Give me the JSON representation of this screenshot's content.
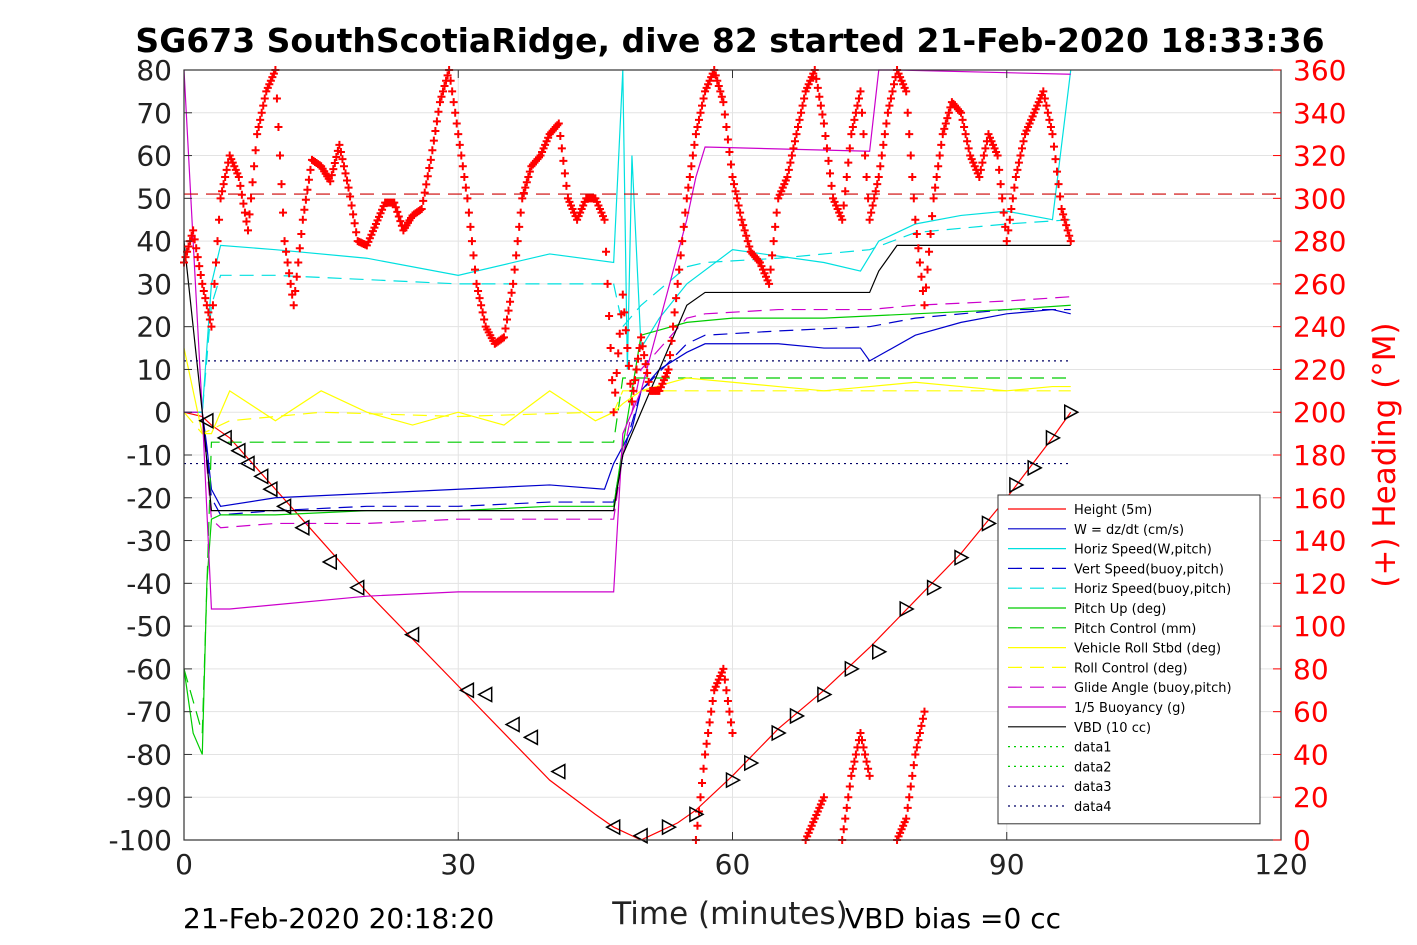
{
  "chart_data": {
    "type": "line",
    "title": "SG673 SouthScotiaRidge, dive 82 started 21-Feb-2020 18:33:36",
    "xlabel": "Time (minutes)",
    "ylabel_right": "(+) Heading (°M)",
    "xlim": [
      0,
      120
    ],
    "ylim": [
      -100,
      80
    ],
    "ylim_right": [
      0,
      360
    ],
    "x_ticks": [
      "0",
      "30",
      "60",
      "90",
      "120"
    ],
    "y_ticks": [
      "80",
      "70",
      "60",
      "50",
      "40",
      "30",
      "20",
      "10",
      "0",
      "-10",
      "-20",
      "-30",
      "-40",
      "-50",
      "-60",
      "-70",
      "-80",
      "-90",
      "-100"
    ],
    "y_ticks_right": [
      "360",
      "340",
      "320",
      "300",
      "280",
      "260",
      "240",
      "220",
      "200",
      "180",
      "160",
      "140",
      "120",
      "100",
      "80",
      "60",
      "40",
      "20",
      "0"
    ],
    "footer_left": "21-Feb-2020 20:18:20",
    "footer_right": "VBD bias =0 cc",
    "legend_position": "lower-right",
    "grid": true,
    "series": [
      {
        "name": "Height (5m)",
        "color": "#ff0000",
        "style": "solid",
        "x": [
          0,
          2,
          3,
          5,
          10,
          15,
          20,
          25,
          30,
          35,
          40,
          45,
          47,
          48,
          50,
          52,
          54,
          56,
          60,
          65,
          70,
          75,
          80,
          85,
          90,
          95,
          97
        ],
        "y": [
          0,
          -1,
          -3,
          -6,
          -18,
          -30,
          -42,
          -53,
          -64,
          -75,
          -86,
          -94,
          -97,
          -98,
          -100,
          -98,
          -96,
          -93,
          -85,
          -74,
          -65,
          -55,
          -44,
          -33,
          -20,
          -6,
          0
        ]
      },
      {
        "name": "W = dz/dt (cm/s)",
        "color": "#0000cc",
        "style": "solid",
        "x": [
          0,
          2,
          2.5,
          3,
          4,
          10,
          20,
          30,
          40,
          46,
          47,
          49,
          50,
          52,
          55,
          57,
          65,
          70,
          74,
          75,
          80,
          85,
          90,
          95,
          97
        ],
        "y": [
          0,
          0,
          -8,
          -18,
          -22,
          -20,
          -19,
          -18,
          -17,
          -18,
          -12,
          -4,
          5,
          10,
          14,
          16,
          16,
          15,
          15,
          12,
          18,
          21,
          23,
          24,
          23
        ]
      },
      {
        "name": "Horiz Speed(W,pitch)",
        "color": "#00e0e0",
        "style": "solid",
        "x": [
          0,
          2,
          3,
          4,
          10,
          20,
          30,
          40,
          47,
          48,
          48.5,
          49,
          50,
          52,
          55,
          60,
          70,
          74,
          76,
          80,
          85,
          90,
          95,
          97
        ],
        "y": [
          0,
          0,
          30,
          39,
          38,
          36,
          32,
          37,
          35,
          80,
          10,
          60,
          15,
          22,
          30,
          38,
          35,
          33,
          40,
          44,
          46,
          47,
          45,
          80
        ]
      },
      {
        "name": "Vert Speed(buoy,pitch)",
        "color": "#0000cc",
        "style": "dashed",
        "x": [
          0,
          2,
          3,
          4,
          10,
          20,
          30,
          40,
          47,
          48,
          50,
          55,
          57,
          65,
          75,
          80,
          90,
          97
        ],
        "y": [
          0,
          0,
          -20,
          -24,
          -23,
          -22,
          -22,
          -21,
          -21,
          -10,
          5,
          16,
          18,
          19,
          20,
          22,
          24,
          24
        ]
      },
      {
        "name": "Horiz Speed(buoy,pitch)",
        "color": "#00e0e0",
        "style": "dashed",
        "x": [
          0,
          2,
          3,
          4,
          10,
          20,
          30,
          40,
          47,
          48,
          50,
          55,
          57,
          65,
          75,
          80,
          90,
          97
        ],
        "y": [
          0,
          0,
          25,
          32,
          32,
          31,
          30,
          30,
          30,
          20,
          25,
          34,
          35,
          36,
          38,
          42,
          44,
          45
        ]
      },
      {
        "name": "Pitch Up (deg)",
        "color": "#00cc00",
        "style": "solid",
        "x": [
          0,
          1,
          2,
          2.5,
          3,
          4,
          10,
          20,
          30,
          40,
          47,
          48,
          49,
          50,
          55,
          60,
          70,
          80,
          90,
          97
        ],
        "y": [
          -60,
          -75,
          -80,
          -40,
          -25,
          -24,
          -24,
          -23,
          -23,
          -22,
          -22,
          -8,
          5,
          18,
          21,
          22,
          22,
          23,
          24,
          25
        ]
      },
      {
        "name": "Pitch Control (mm)",
        "color": "#00cc00",
        "style": "dashed",
        "x": [
          0,
          2,
          3,
          4,
          47,
          48,
          97
        ],
        "y": [
          -60,
          -75,
          -7,
          -7,
          -7,
          8,
          8
        ]
      },
      {
        "name": "Vehicle Roll Stbd (deg)",
        "color": "#ffff00",
        "style": "solid",
        "x": [
          0,
          2,
          3,
          5,
          10,
          15,
          20,
          25,
          30,
          35,
          40,
          45,
          47,
          48,
          50,
          55,
          60,
          65,
          70,
          75,
          80,
          85,
          90,
          95,
          97
        ],
        "y": [
          15,
          -5,
          -5,
          5,
          -2,
          5,
          0,
          -3,
          0,
          -3,
          5,
          -2,
          0,
          2,
          5,
          8,
          7,
          6,
          5,
          6,
          7,
          6,
          5,
          6,
          6
        ]
      },
      {
        "name": "Roll Control (deg)",
        "color": "#ffff00",
        "style": "dashed",
        "x": [
          0,
          2,
          5,
          15,
          30,
          45,
          47,
          48,
          55,
          65,
          75,
          85,
          97
        ],
        "y": [
          0,
          -5,
          -2,
          0,
          -1,
          0,
          0,
          5,
          5,
          5,
          5,
          5,
          5
        ]
      },
      {
        "name": "Glide Angle (buoy,pitch)",
        "color": "#cc00cc",
        "style": "dashed",
        "x": [
          0,
          2,
          3,
          4,
          10,
          20,
          30,
          40,
          47,
          48,
          50,
          55,
          57,
          65,
          75,
          80,
          90,
          97
        ],
        "y": [
          0,
          0,
          -25,
          -27,
          -26,
          -26,
          -25,
          -25,
          -25,
          -10,
          10,
          22,
          23,
          24,
          24,
          25,
          26,
          27
        ]
      },
      {
        "name": "1/5 Buoyancy (g)",
        "color": "#cc00cc",
        "style": "solid",
        "x": [
          0,
          2,
          3,
          5,
          10,
          20,
          30,
          40,
          47,
          48,
          49,
          50,
          55,
          56,
          57,
          75,
          76,
          78,
          97
        ],
        "y": [
          80,
          0,
          -46,
          -46,
          -45,
          -43,
          -42,
          -42,
          -42,
          -5,
          0,
          5,
          45,
          55,
          62,
          61,
          80,
          80,
          79
        ]
      },
      {
        "name": "VBD (10 cc)",
        "color": "#000000",
        "style": "solid",
        "x": [
          0,
          2,
          3,
          4,
          47,
          48,
          55,
          57,
          75,
          76,
          78,
          97
        ],
        "y": [
          40,
          0,
          -23,
          -23,
          -23,
          -10,
          25,
          28,
          28,
          33,
          39,
          39
        ]
      },
      {
        "name": "data1",
        "color": "#00cc00",
        "style": "dotted",
        "x": [
          0,
          97
        ],
        "y": [
          null,
          null
        ]
      },
      {
        "name": "data2",
        "color": "#00cc00",
        "style": "dotted",
        "x": [
          0,
          97
        ],
        "y": [
          null,
          null
        ]
      },
      {
        "name": "data3",
        "color": "#000066",
        "style": "dotted",
        "x": [
          0,
          97
        ],
        "y": [
          12,
          12
        ]
      },
      {
        "name": "data4",
        "color": "#000066",
        "style": "dotted",
        "x": [
          0,
          97
        ],
        "y": [
          -12,
          -12
        ]
      }
    ],
    "reference_lines": [
      {
        "axis": "right",
        "value": 302,
        "color": "#cc0000",
        "style": "dashed"
      }
    ],
    "heading_series": {
      "name": "(+) Heading",
      "color": "#ff0000",
      "marker": "+",
      "axis": "right",
      "x": [
        0,
        1,
        2,
        3,
        4,
        5,
        6,
        7,
        8,
        9,
        10,
        11,
        12,
        13,
        14,
        15,
        16,
        17,
        18,
        19,
        20,
        21,
        22,
        23,
        24,
        25,
        26,
        27,
        28,
        29,
        30,
        31,
        32,
        33,
        34,
        35,
        36,
        37,
        38,
        39,
        40,
        41,
        42,
        43,
        44,
        45,
        46,
        47,
        48,
        49,
        50,
        51,
        52,
        53,
        54,
        55,
        56,
        57,
        58,
        59,
        60,
        61,
        62,
        63,
        64,
        65,
        66,
        67,
        68,
        69,
        70,
        71,
        72,
        73,
        74,
        75,
        76,
        77,
        78,
        79,
        80,
        81,
        82,
        83,
        84,
        85,
        86,
        87,
        88,
        89,
        90,
        91,
        92,
        93,
        94,
        95,
        96,
        97
      ],
      "y": [
        270,
        285,
        260,
        240,
        300,
        320,
        310,
        285,
        330,
        350,
        360,
        280,
        250,
        290,
        318,
        315,
        308,
        325,
        305,
        280,
        278,
        288,
        298,
        298,
        285,
        292,
        295,
        318,
        345,
        360,
        330,
        300,
        260,
        240,
        232,
        235,
        260,
        300,
        315,
        320,
        330,
        335,
        300,
        290,
        300,
        300,
        290,
        200,
        255,
        205,
        235,
        210,
        210,
        220,
        260,
        300,
        330,
        350,
        360,
        345,
        310,
        290,
        275,
        270,
        260,
        300,
        310,
        330,
        350,
        360,
        335,
        300,
        290,
        330,
        350,
        290,
        310,
        340,
        360,
        350,
        290,
        250,
        300,
        330,
        345,
        340,
        320,
        310,
        330,
        320,
        280,
        310,
        330,
        340,
        350,
        330,
        295,
        280
      ],
      "extra_low_segments": [
        {
          "x": [
            56,
            57,
            58,
            59,
            60
          ],
          "y": [
            0,
            40,
            70,
            80,
            50
          ]
        },
        {
          "x": [
            68,
            69,
            70
          ],
          "y": [
            0,
            10,
            20
          ]
        },
        {
          "x": [
            72,
            73,
            74,
            75
          ],
          "y": [
            0,
            30,
            50,
            30
          ]
        },
        {
          "x": [
            78,
            79,
            80,
            81
          ],
          "y": [
            0,
            10,
            40,
            60
          ]
        }
      ]
    },
    "dive_markers": {
      "symbol": "triangle",
      "x": [
        2.5,
        4.5,
        6,
        7,
        8.5,
        9.5,
        11,
        13,
        16,
        19,
        25,
        31,
        33,
        36,
        38,
        41,
        47,
        50,
        53,
        56,
        60,
        62,
        65,
        67,
        70,
        73,
        76,
        79,
        82,
        85,
        88,
        91,
        93,
        95,
        97
      ],
      "y": [
        -2,
        -6,
        -9,
        -12,
        -15,
        -18,
        -22,
        -27,
        -35,
        -41,
        -52,
        -65,
        -66,
        -73,
        -76,
        -84,
        -97,
        -99,
        -97,
        -94,
        -86,
        -82,
        -75,
        -71,
        -66,
        -60,
        -56,
        -46,
        -41,
        -34,
        -26,
        -17,
        -13,
        -6,
        0
      ]
    }
  }
}
